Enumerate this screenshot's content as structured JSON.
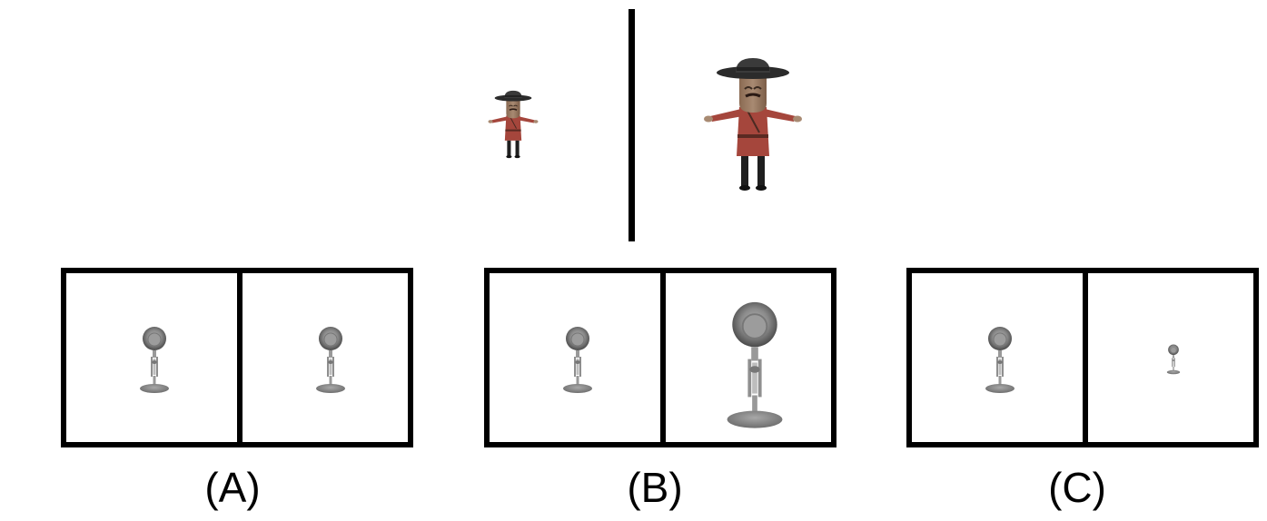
{
  "reference": {
    "left_figure": "cowboy-character",
    "right_figure": "cowboy-character"
  },
  "options": [
    {
      "label": "(A)",
      "left_icon": "lamp-icon",
      "right_icon": "lamp-icon",
      "right_scale": 1.0
    },
    {
      "label": "(B)",
      "left_icon": "lamp-icon",
      "right_icon": "lamp-icon",
      "right_scale": 2.4
    },
    {
      "label": "(C)",
      "left_icon": "lamp-icon",
      "right_icon": "lamp-icon",
      "right_scale": 0.45
    }
  ],
  "colors": {
    "frame": "#000000",
    "shirt": "#a5463c",
    "hat": "#2b2b2b",
    "skin": "#9a7a62",
    "lamp": "#8a8a8a"
  }
}
